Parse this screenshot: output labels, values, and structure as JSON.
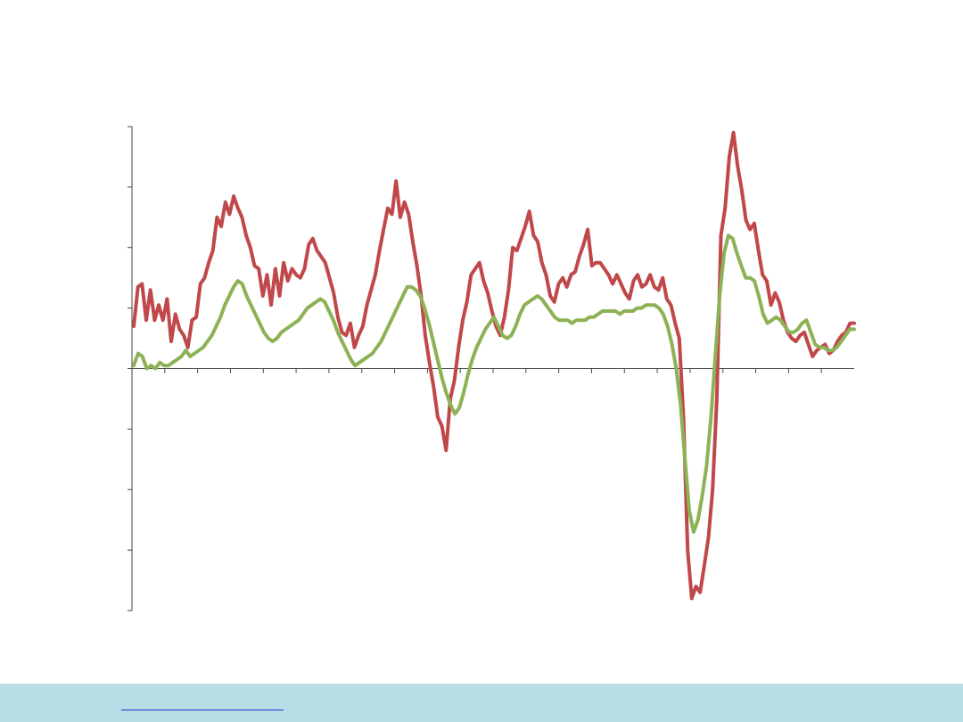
{
  "colors": {
    "axis": "#444444",
    "footer_band": "#b9dde6",
    "link_underline": "#2233cc"
  },
  "footer": {
    "link_text": ""
  },
  "chart_data": {
    "type": "line",
    "title": "",
    "xlabel": "",
    "ylabel": "",
    "ylim": [
      -4,
      4
    ],
    "yticks": [
      -4,
      -3,
      -2,
      -1,
      0,
      1,
      2,
      3,
      4
    ],
    "x_tick_count": 22,
    "grid": false,
    "legend": "none",
    "series": [
      {
        "color": "#c0474a",
        "values": [
          0.7,
          1.35,
          1.4,
          0.8,
          1.3,
          0.8,
          1.05,
          0.8,
          1.15,
          0.45,
          0.9,
          0.65,
          0.55,
          0.35,
          0.8,
          0.85,
          1.4,
          1.5,
          1.75,
          1.95,
          2.5,
          2.35,
          2.75,
          2.55,
          2.85,
          2.65,
          2.5,
          2.2,
          2.0,
          1.7,
          1.65,
          1.2,
          1.55,
          1.05,
          1.65,
          1.2,
          1.75,
          1.45,
          1.65,
          1.55,
          1.5,
          1.65,
          2.05,
          2.15,
          1.95,
          1.85,
          1.75,
          1.5,
          1.25,
          0.85,
          0.6,
          0.55,
          0.75,
          0.35,
          0.55,
          0.7,
          1.05,
          1.3,
          1.55,
          1.95,
          2.3,
          2.65,
          2.55,
          3.1,
          2.5,
          2.75,
          2.55,
          2.1,
          1.7,
          1.2,
          0.55,
          0.1,
          -0.3,
          -0.8,
          -0.95,
          -1.35,
          -0.5,
          -0.2,
          0.35,
          0.8,
          1.1,
          1.55,
          1.65,
          1.75,
          1.45,
          1.25,
          0.95,
          0.7,
          0.55,
          0.85,
          1.3,
          2.0,
          1.95,
          2.15,
          2.35,
          2.6,
          2.2,
          2.1,
          1.75,
          1.55,
          1.2,
          1.1,
          1.4,
          1.5,
          1.35,
          1.55,
          1.6,
          1.85,
          2.05,
          2.3,
          1.7,
          1.75,
          1.75,
          1.65,
          1.55,
          1.4,
          1.55,
          1.4,
          1.25,
          1.15,
          1.45,
          1.55,
          1.35,
          1.4,
          1.55,
          1.35,
          1.3,
          1.5,
          1.15,
          1.05,
          0.75,
          0.5,
          -0.8,
          -3.0,
          -3.8,
          -3.6,
          -3.7,
          -3.25,
          -2.8,
          -2.0,
          -0.5,
          2.2,
          2.65,
          3.5,
          3.9,
          3.35,
          2.95,
          2.45,
          2.3,
          2.4,
          1.95,
          1.55,
          1.45,
          1.05,
          1.25,
          1.1,
          0.8,
          0.6,
          0.5,
          0.45,
          0.55,
          0.6,
          0.4,
          0.2,
          0.3,
          0.35,
          0.4,
          0.25,
          0.3,
          0.45,
          0.55,
          0.6,
          0.75,
          0.75
        ]
      },
      {
        "color": "#8db255",
        "values": [
          0.05,
          0.25,
          0.2,
          0.0,
          0.05,
          0.0,
          0.1,
          0.05,
          0.05,
          0.1,
          0.15,
          0.2,
          0.3,
          0.2,
          0.25,
          0.3,
          0.35,
          0.45,
          0.55,
          0.7,
          0.85,
          1.05,
          1.2,
          1.35,
          1.45,
          1.4,
          1.2,
          1.05,
          0.9,
          0.75,
          0.6,
          0.5,
          0.45,
          0.5,
          0.6,
          0.65,
          0.7,
          0.75,
          0.8,
          0.9,
          1.0,
          1.05,
          1.1,
          1.15,
          1.1,
          0.95,
          0.8,
          0.6,
          0.45,
          0.3,
          0.15,
          0.05,
          0.1,
          0.15,
          0.2,
          0.25,
          0.35,
          0.45,
          0.6,
          0.75,
          0.9,
          1.05,
          1.2,
          1.35,
          1.35,
          1.3,
          1.2,
          1.0,
          0.75,
          0.45,
          0.15,
          -0.15,
          -0.4,
          -0.6,
          -0.75,
          -0.65,
          -0.4,
          -0.1,
          0.15,
          0.35,
          0.5,
          0.65,
          0.75,
          0.85,
          0.7,
          0.55,
          0.5,
          0.55,
          0.7,
          0.9,
          1.05,
          1.1,
          1.15,
          1.2,
          1.15,
          1.05,
          0.95,
          0.85,
          0.8,
          0.8,
          0.8,
          0.75,
          0.8,
          0.8,
          0.8,
          0.85,
          0.85,
          0.9,
          0.95,
          0.95,
          0.95,
          0.95,
          0.9,
          0.95,
          0.95,
          0.95,
          1.0,
          1.0,
          1.05,
          1.05,
          1.05,
          1.0,
          0.9,
          0.7,
          0.4,
          0.0,
          -0.6,
          -1.5,
          -2.35,
          -2.7,
          -2.5,
          -2.1,
          -1.6,
          -0.8,
          0.2,
          1.2,
          1.9,
          2.2,
          2.15,
          1.9,
          1.7,
          1.5,
          1.5,
          1.45,
          1.2,
          0.9,
          0.75,
          0.8,
          0.85,
          0.8,
          0.7,
          0.6,
          0.6,
          0.65,
          0.75,
          0.8,
          0.6,
          0.4,
          0.35,
          0.35,
          0.3,
          0.3,
          0.35,
          0.45,
          0.55,
          0.65,
          0.65
        ]
      }
    ]
  }
}
